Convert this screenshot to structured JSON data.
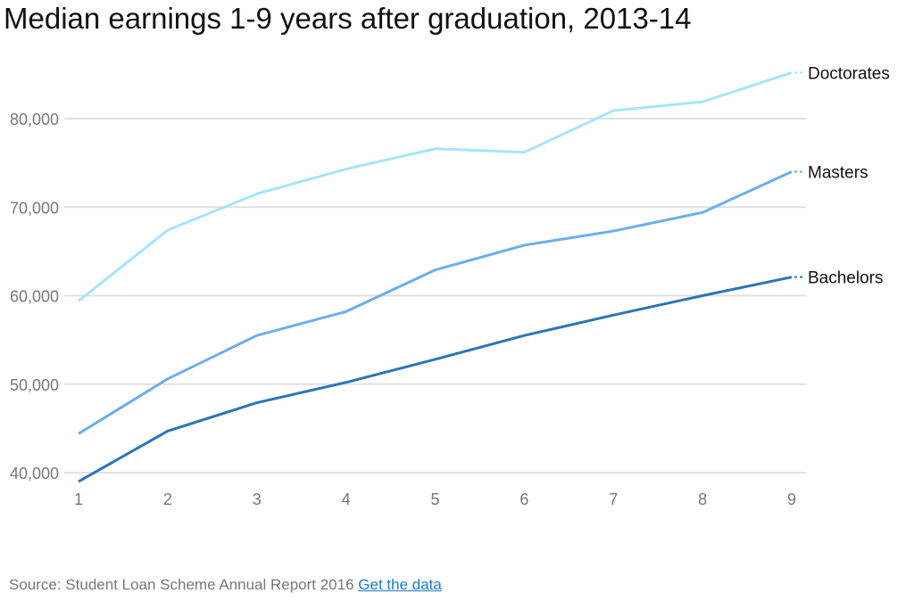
{
  "chart_data": {
    "type": "line",
    "title": "Median earnings 1-9 years after graduation, 2013-14",
    "xlabel": "",
    "ylabel": "",
    "x": [
      1,
      2,
      3,
      4,
      5,
      6,
      7,
      8,
      9
    ],
    "x_ticks": [
      "1",
      "2",
      "3",
      "4",
      "5",
      "6",
      "7",
      "8",
      "9"
    ],
    "ylim": [
      40000,
      85000
    ],
    "y_ticks": [
      40000,
      50000,
      60000,
      70000,
      80000
    ],
    "y_tick_labels": [
      "40,000",
      "50,000",
      "60,000",
      "70,000",
      "80,000"
    ],
    "grid": true,
    "legend": "end-of-line labels right",
    "series": [
      {
        "name": "Doctorates",
        "color": "#a6e4fb",
        "values": [
          59400,
          67400,
          71500,
          74300,
          76600,
          76200,
          80900,
          81900,
          85200
        ]
      },
      {
        "name": "Masters",
        "color": "#6aaef0",
        "values": [
          44400,
          50600,
          55500,
          58200,
          62900,
          65700,
          67300,
          69400,
          74000
        ]
      },
      {
        "name": "Bachelors",
        "color": "#2b75b8",
        "values": [
          39000,
          44700,
          47900,
          50200,
          52800,
          55500,
          57800,
          60000,
          62100
        ]
      }
    ]
  },
  "footer": {
    "source": "Source: Student Loan Scheme Annual Report 2016",
    "link": "Get the data"
  }
}
